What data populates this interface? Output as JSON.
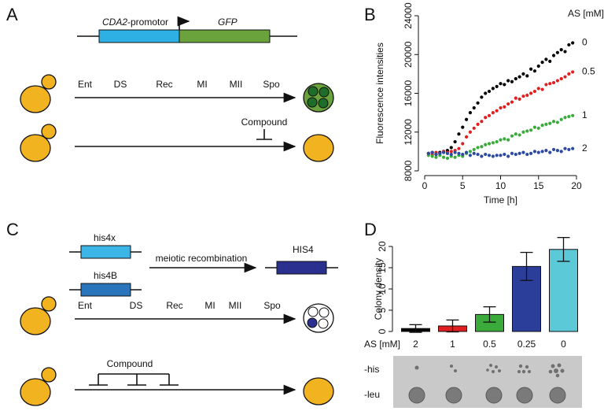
{
  "panels": {
    "a": "A",
    "b": "B",
    "c": "C",
    "d": "D"
  },
  "panel_a": {
    "promoter_gene": "CDA2",
    "promoter_suffix": "-promotor",
    "reporter": "GFP",
    "stages": [
      "Ent",
      "DS",
      "Rec",
      "MI",
      "MII",
      "Spo"
    ],
    "compound": "Compound"
  },
  "panel_c": {
    "alleles": [
      "his4x",
      "his4B"
    ],
    "process": "meiotic recombination",
    "product": "HIS4",
    "stages": [
      "Ent",
      "DS",
      "Rec",
      "MI",
      "MII",
      "Spo"
    ],
    "compound": "Compound"
  },
  "panel_d_plates": {
    "rows": [
      "-his",
      "-leu"
    ]
  },
  "chart_data": [
    {
      "type": "scatter",
      "y_label": "Fluorescence intensities",
      "x_label": "Time [h]",
      "legend_title": "AS [mM]",
      "x": [
        0.5,
        1,
        1.5,
        2,
        2.5,
        3,
        3.5,
        4,
        4.5,
        5,
        5.5,
        6,
        6.5,
        7,
        7.5,
        8,
        8.5,
        9,
        9.5,
        10,
        10.5,
        11,
        11.5,
        12,
        12.5,
        13,
        13.5,
        14,
        14.5,
        15,
        15.5,
        16,
        16.5,
        17,
        17.5,
        18,
        18.5,
        19,
        19.5
      ],
      "series": [
        {
          "name": "0",
          "color": "#000000",
          "values": [
            9800,
            9900,
            9700,
            9900,
            10000,
            10100,
            10400,
            11000,
            11800,
            12500,
            13300,
            14000,
            14500,
            15000,
            15600,
            16000,
            16200,
            16500,
            16700,
            17000,
            16900,
            17300,
            17200,
            17500,
            17700,
            18000,
            17800,
            18500,
            18300,
            18800,
            19200,
            19500,
            19300,
            19900,
            20200,
            20500,
            20300,
            21000,
            21200
          ]
        },
        {
          "name": "0.5",
          "color": "#e02020",
          "values": [
            9800,
            9700,
            9900,
            9800,
            10000,
            9900,
            10000,
            10100,
            10300,
            10800,
            11500,
            12000,
            12400,
            12800,
            13100,
            13500,
            13700,
            14000,
            14200,
            14500,
            14600,
            14900,
            15100,
            15500,
            15400,
            15700,
            15800,
            16000,
            16200,
            16500,
            16400,
            16900,
            17000,
            17100,
            17300,
            17500,
            17700,
            18000,
            18200
          ]
        },
        {
          "name": "1",
          "color": "#3aab3a",
          "values": [
            9600,
            9500,
            9400,
            9600,
            9400,
            9300,
            9500,
            9400,
            9600,
            9500,
            9800,
            10000,
            10200,
            10400,
            10500,
            10700,
            10800,
            10900,
            11000,
            11200,
            11300,
            11200,
            11600,
            11800,
            11700,
            12000,
            12100,
            12200,
            12500,
            12400,
            12700,
            12800,
            12900,
            13100,
            13000,
            13300,
            13500,
            13600,
            13700
          ]
        },
        {
          "name": "2",
          "color": "#2b4aa0",
          "values": [
            9800,
            9900,
            9700,
            9800,
            9900,
            9800,
            9700,
            9900,
            9800,
            9700,
            9900,
            9600,
            9800,
            9700,
            9500,
            9700,
            9600,
            9500,
            9600,
            9600,
            9700,
            9500,
            9800,
            9700,
            9800,
            9900,
            9700,
            9800,
            10000,
            9900,
            10000,
            10100,
            9900,
            10200,
            10100,
            10000,
            10300,
            10200,
            10300
          ]
        }
      ],
      "xlim": [
        0,
        20
      ],
      "xticks": [
        0,
        5,
        10,
        15,
        20
      ],
      "ylim": [
        8000,
        24000
      ],
      "yticks": [
        8000,
        12000,
        16000,
        20000,
        24000
      ]
    },
    {
      "type": "bar",
      "y_label": "Colony density",
      "x_label": "AS [mM]",
      "categories": [
        "2",
        "1",
        "0.5",
        "0.25",
        "0"
      ],
      "values": [
        0.7,
        1.3,
        4,
        15.3,
        19.3
      ],
      "errors": [
        0.9,
        1.4,
        1.8,
        3.3,
        2.8
      ],
      "colors": [
        "#000000",
        "#e02020",
        "#3aab3a",
        "#2b3f9a",
        "#5cc9d9"
      ],
      "ylim": [
        0,
        20
      ],
      "yticks": [
        0,
        5,
        10,
        15,
        20
      ]
    }
  ]
}
